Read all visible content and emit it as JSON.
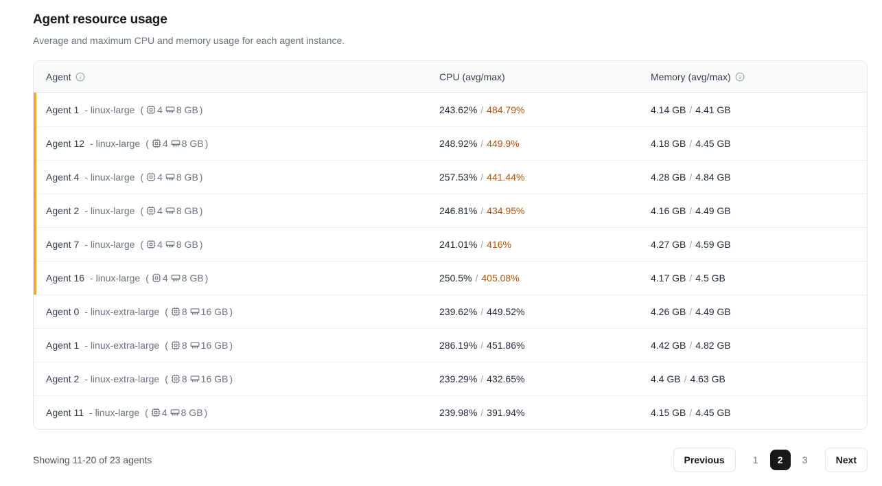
{
  "page": {
    "title": "Agent resource usage",
    "subtitle": "Average and maximum CPU and memory usage for each agent instance."
  },
  "table": {
    "columns": {
      "agent": "Agent",
      "cpu": "CPU (avg/max)",
      "memory": "Memory (avg/max)"
    },
    "glyphs": {
      "dash": "-",
      "open": "(",
      "close": ")",
      "slash": "/"
    },
    "rows": [
      {
        "name": "Agent 1",
        "size": "linux-large",
        "cores": "4",
        "ram": "8 GB",
        "cpu_avg": "243.62%",
        "cpu_max": "484.79%",
        "cpu_max_hot": true,
        "mem_avg": "4.14 GB",
        "mem_max": "4.41 GB"
      },
      {
        "name": "Agent 12",
        "size": "linux-large",
        "cores": "4",
        "ram": "8 GB",
        "cpu_avg": "248.92%",
        "cpu_max": "449.9%",
        "cpu_max_hot": true,
        "mem_avg": "4.18 GB",
        "mem_max": "4.45 GB"
      },
      {
        "name": "Agent 4",
        "size": "linux-large",
        "cores": "4",
        "ram": "8 GB",
        "cpu_avg": "257.53%",
        "cpu_max": "441.44%",
        "cpu_max_hot": true,
        "mem_avg": "4.28 GB",
        "mem_max": "4.84 GB"
      },
      {
        "name": "Agent 2",
        "size": "linux-large",
        "cores": "4",
        "ram": "8 GB",
        "cpu_avg": "246.81%",
        "cpu_max": "434.95%",
        "cpu_max_hot": true,
        "mem_avg": "4.16 GB",
        "mem_max": "4.49 GB"
      },
      {
        "name": "Agent 7",
        "size": "linux-large",
        "cores": "4",
        "ram": "8 GB",
        "cpu_avg": "241.01%",
        "cpu_max": "416%",
        "cpu_max_hot": true,
        "mem_avg": "4.27 GB",
        "mem_max": "4.59 GB"
      },
      {
        "name": "Agent 16",
        "size": "linux-large",
        "cores": "4",
        "ram": "8 GB",
        "cpu_avg": "250.5%",
        "cpu_max": "405.08%",
        "cpu_max_hot": true,
        "mem_avg": "4.17 GB",
        "mem_max": "4.5 GB"
      },
      {
        "name": "Agent 0",
        "size": "linux-extra-large",
        "cores": "8",
        "ram": "16 GB",
        "cpu_avg": "239.62%",
        "cpu_max": "449.52%",
        "cpu_max_hot": false,
        "mem_avg": "4.26 GB",
        "mem_max": "4.49 GB"
      },
      {
        "name": "Agent 1",
        "size": "linux-extra-large",
        "cores": "8",
        "ram": "16 GB",
        "cpu_avg": "286.19%",
        "cpu_max": "451.86%",
        "cpu_max_hot": false,
        "mem_avg": "4.42 GB",
        "mem_max": "4.82 GB"
      },
      {
        "name": "Agent 2",
        "size": "linux-extra-large",
        "cores": "8",
        "ram": "16 GB",
        "cpu_avg": "239.29%",
        "cpu_max": "432.65%",
        "cpu_max_hot": false,
        "mem_avg": "4.4 GB",
        "mem_max": "4.63 GB"
      },
      {
        "name": "Agent 11",
        "size": "linux-large",
        "cores": "4",
        "ram": "8 GB",
        "cpu_avg": "239.98%",
        "cpu_max": "391.94%",
        "cpu_max_hot": false,
        "mem_avg": "4.15 GB",
        "mem_max": "4.45 GB"
      }
    ]
  },
  "footer": {
    "summary": "Showing 11-20 of 23 agents",
    "pagination": {
      "previous_label": "Previous",
      "next_label": "Next",
      "pages": [
        "1",
        "2",
        "3"
      ],
      "active_page": "2"
    }
  },
  "colors": {
    "accent_amber_bar": "#eaab30",
    "hot_cpu_text": "#b45309",
    "active_page_bg": "#18181b",
    "header_bg": "#f9fafb",
    "border": "#e5e7eb"
  }
}
